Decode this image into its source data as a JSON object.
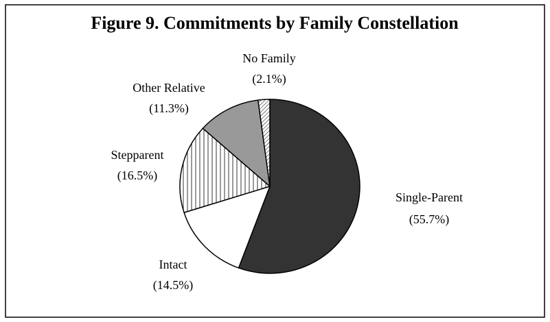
{
  "chart_data": {
    "type": "pie",
    "title": "Figure 9.  Commitments by Family Constellation",
    "categories": [
      "Single-Parent",
      "Intact",
      "Stepparent",
      "Other Relative",
      "No Family"
    ],
    "values": [
      55.7,
      14.5,
      16.5,
      11.3,
      2.1
    ],
    "value_labels": [
      "(55.7%)",
      "(14.5%)",
      "(16.5%)",
      "(11.3%)",
      "(2.1%)"
    ],
    "fills": [
      "#333333",
      "#ffffff",
      "vertical-hatch",
      "#999999",
      "diagonal-hatch"
    ],
    "start_angle": 0,
    "direction": "clockwise"
  }
}
